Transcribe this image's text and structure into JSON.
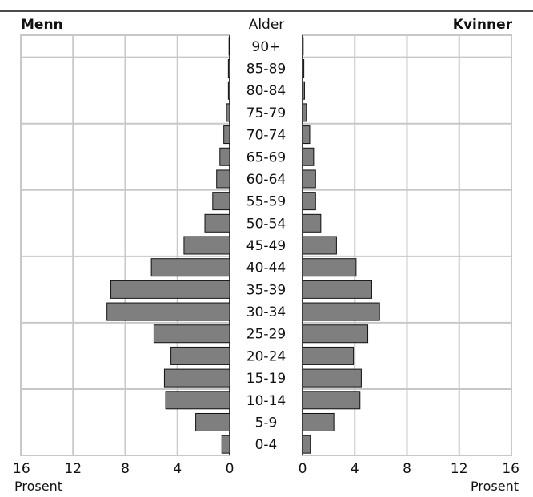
{
  "chart_data": {
    "type": "bar",
    "orientation": "horizontal-pyramid",
    "left_title": "Menn",
    "center_title": "Alder",
    "right_title": "Kvinner",
    "age_groups": [
      "90+",
      "85-89",
      "80-84",
      "75-79",
      "70-74",
      "65-69",
      "60-64",
      "55-59",
      "50-54",
      "45-49",
      "40-44",
      "35-39",
      "30-34",
      "25-29",
      "20-24",
      "15-19",
      "10-14",
      "5-9",
      "0-4"
    ],
    "series": [
      {
        "name": "Menn",
        "values": [
          0.05,
          0.1,
          0.1,
          0.25,
          0.45,
          0.75,
          1.0,
          1.3,
          1.9,
          3.5,
          6.0,
          9.1,
          9.4,
          5.8,
          4.5,
          5.0,
          4.9,
          2.6,
          0.6
        ]
      },
      {
        "name": "Kvinner",
        "values": [
          0.05,
          0.1,
          0.15,
          0.3,
          0.55,
          0.85,
          1.0,
          1.0,
          1.4,
          2.6,
          4.1,
          5.3,
          5.9,
          5.0,
          3.9,
          4.5,
          4.4,
          2.4,
          0.6
        ]
      }
    ],
    "left_ticks": [
      "16",
      "12",
      "8",
      "4",
      "0"
    ],
    "right_ticks": [
      "0",
      "4",
      "8",
      "12",
      "16"
    ],
    "xlabel_left": "Prosent",
    "xlabel_right": "Prosent",
    "xlim": [
      0,
      16
    ],
    "grid": true,
    "colors": {
      "bar_fill": "#7f7f7f",
      "bar_stroke": "#111111",
      "grid": "#c8c8c8"
    }
  }
}
